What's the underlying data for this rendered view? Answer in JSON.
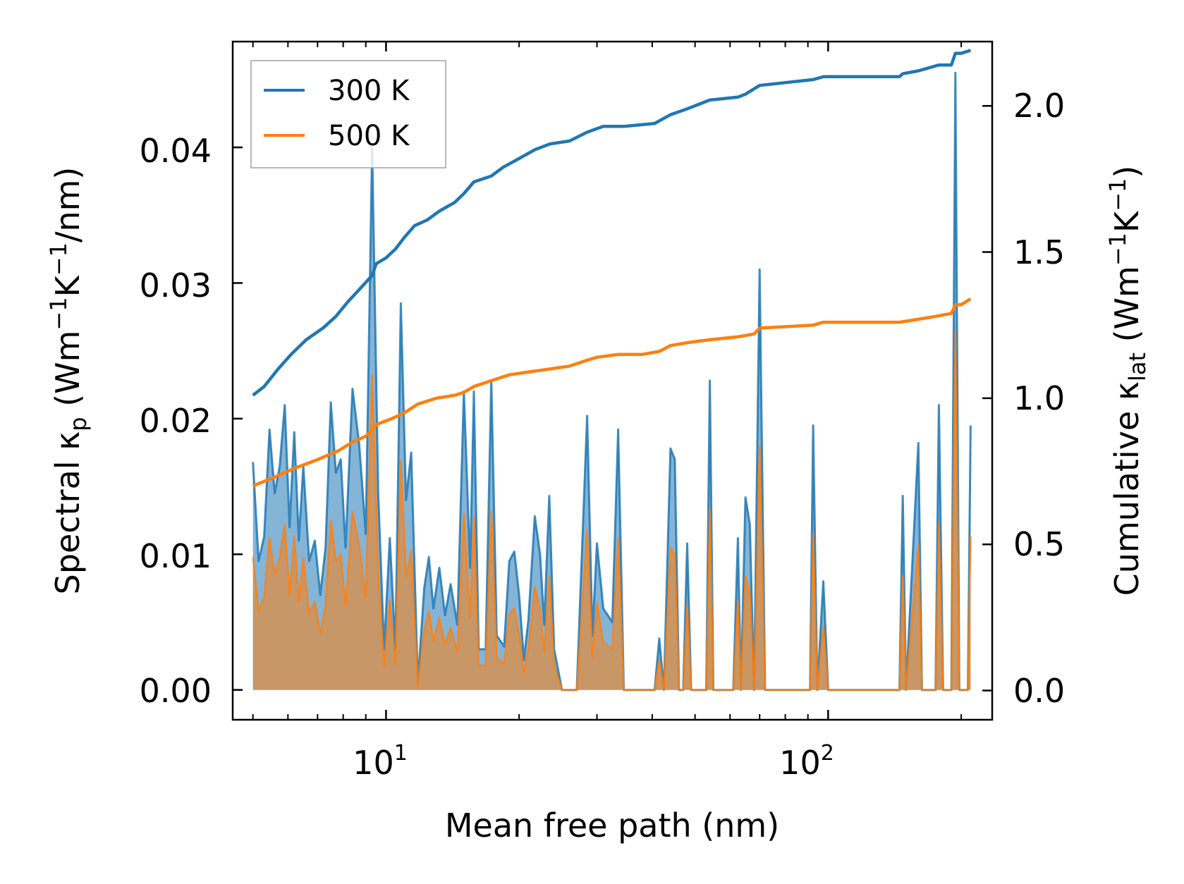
{
  "chart_data": {
    "type": "line",
    "xlabel": "Mean free path (nm)",
    "xscale": "log",
    "xlim": [
      4.5,
      235
    ],
    "x_ticks": [
      {
        "value": 10,
        "base": "10",
        "exp": "1"
      },
      {
        "value": 100,
        "base": "10",
        "exp": "2"
      }
    ],
    "y_left": {
      "label_pre": "Spectral κ",
      "label_sub": "p",
      "label_post": " (Wm",
      "label_sup1": "−1",
      "label_mid": "K",
      "label_sup2": "−1",
      "label_end": "/nm)",
      "lim": [
        -0.0022,
        0.0478
      ],
      "ticks": [
        0.0,
        0.01,
        0.02,
        0.03,
        0.04
      ],
      "tick_labels": [
        "0.00",
        "0.01",
        "0.02",
        "0.03",
        "0.04"
      ]
    },
    "y_right": {
      "label_pre": "Cumulative κ",
      "label_sub": "lat",
      "label_post": " (Wm",
      "label_sup1": "−1",
      "label_mid": "K",
      "label_sup2": "−1",
      "label_end": ")",
      "lim": [
        -0.1,
        2.22
      ],
      "ticks": [
        0.0,
        0.5,
        1.0,
        1.5,
        2.0
      ],
      "tick_labels": [
        "0.0",
        "0.5",
        "1.0",
        "1.5",
        "2.0"
      ]
    },
    "legend": {
      "position": "top-left",
      "entries": [
        "300 K",
        "500 K"
      ]
    },
    "series": [
      {
        "name": "300 K",
        "color": "#1f77b4",
        "fill_color": "#1f77b4",
        "spectral": [
          [
            5,
            0.0168
          ],
          [
            5.15,
            0.0095
          ],
          [
            5.3,
            0.0113
          ],
          [
            5.45,
            0.0192
          ],
          [
            5.6,
            0.0145
          ],
          [
            5.75,
            0.0165
          ],
          [
            5.9,
            0.021
          ],
          [
            6.05,
            0.012
          ],
          [
            6.2,
            0.019
          ],
          [
            6.35,
            0.011
          ],
          [
            6.5,
            0.0165
          ],
          [
            6.7,
            0.0095
          ],
          [
            6.9,
            0.011
          ],
          [
            7.1,
            0.007
          ],
          [
            7.3,
            0.0105
          ],
          [
            7.5,
            0.0212
          ],
          [
            7.7,
            0.016
          ],
          [
            7.9,
            0.017
          ],
          [
            8.1,
            0.0105
          ],
          [
            8.4,
            0.0222
          ],
          [
            8.7,
            0.018
          ],
          [
            9.0,
            0.0115
          ],
          [
            9.3,
            0.04
          ],
          [
            9.6,
            0.0145
          ],
          [
            9.9,
            0.003
          ],
          [
            10.2,
            0.0112
          ],
          [
            10.5,
            0.003
          ],
          [
            10.8,
            0.0285
          ],
          [
            11.1,
            0.014
          ],
          [
            11.4,
            0.0175
          ],
          [
            11.8,
            0.0005
          ],
          [
            12.2,
            0.0075
          ],
          [
            12.5,
            0.0098
          ],
          [
            12.8,
            0.006
          ],
          [
            13.2,
            0.009
          ],
          [
            13.6,
            0.0055
          ],
          [
            14.0,
            0.0078
          ],
          [
            14.5,
            0.0048
          ],
          [
            15.0,
            0.022
          ],
          [
            15.5,
            0.009
          ],
          [
            15.8,
            0.022
          ],
          [
            16.2,
            0.003
          ],
          [
            16.8,
            0.003
          ],
          [
            17.3,
            0.0228
          ],
          [
            17.8,
            0.004
          ],
          [
            18.5,
            0.0032
          ],
          [
            19.0,
            0.0095
          ],
          [
            19.5,
            0.0102
          ],
          [
            20.0,
            0.007
          ],
          [
            20.5,
            0.0022
          ],
          [
            21.0,
            0.0052
          ],
          [
            21.7,
            0.0128
          ],
          [
            22.3,
            0.01
          ],
          [
            22.8,
            0.0048
          ],
          [
            23.4,
            0.0143
          ],
          [
            24.0,
            0.003
          ],
          [
            25.0,
            0
          ],
          [
            27.0,
            0
          ],
          [
            28.5,
            0.0202
          ],
          [
            29.3,
            0.004
          ],
          [
            30.0,
            0.0108
          ],
          [
            31.0,
            0.006
          ],
          [
            32.5,
            0.005
          ],
          [
            33.5,
            0.0192
          ],
          [
            34.5,
            0
          ],
          [
            38.0,
            0
          ],
          [
            40.5,
            0
          ],
          [
            41.5,
            0.0038
          ],
          [
            42.5,
            0
          ],
          [
            44.0,
            0.0178
          ],
          [
            45.0,
            0.017
          ],
          [
            46.0,
            0
          ],
          [
            47.0,
            0
          ],
          [
            48.0,
            0.0108
          ],
          [
            49.0,
            0
          ],
          [
            53.0,
            0
          ],
          [
            54.0,
            0.0228
          ],
          [
            55.0,
            0
          ],
          [
            61.0,
            0
          ],
          [
            62.5,
            0.0112
          ],
          [
            63.5,
            0
          ],
          [
            65.0,
            0.0142
          ],
          [
            66.5,
            0.0122
          ],
          [
            68.0,
            0
          ],
          [
            70.0,
            0.031
          ],
          [
            72.0,
            0
          ],
          [
            91.0,
            0
          ],
          [
            92.5,
            0.0195
          ],
          [
            94.5,
            0
          ],
          [
            97.5,
            0.008
          ],
          [
            100.0,
            0
          ],
          [
            145.0,
            0
          ],
          [
            147.5,
            0.0143
          ],
          [
            150.0,
            0
          ],
          [
            160.0,
            0.0182
          ],
          [
            163.0,
            0
          ],
          [
            175.0,
            0
          ],
          [
            178.0,
            0.021
          ],
          [
            182.0,
            0
          ],
          [
            190.0,
            0
          ],
          [
            194.0,
            0.0455
          ],
          [
            198.0,
            0
          ],
          [
            207.0,
            0
          ],
          [
            210.0,
            0.0195
          ]
        ],
        "cumulative": [
          [
            5,
            1.01
          ],
          [
            5.3,
            1.04
          ],
          [
            5.7,
            1.1
          ],
          [
            6.1,
            1.15
          ],
          [
            6.6,
            1.2
          ],
          [
            7.2,
            1.24
          ],
          [
            7.7,
            1.28
          ],
          [
            8.2,
            1.33
          ],
          [
            8.8,
            1.38
          ],
          [
            9.3,
            1.42
          ],
          [
            9.5,
            1.46
          ],
          [
            10.0,
            1.48
          ],
          [
            10.5,
            1.51
          ],
          [
            11.0,
            1.55
          ],
          [
            11.6,
            1.59
          ],
          [
            12.4,
            1.61
          ],
          [
            13.2,
            1.64
          ],
          [
            14.3,
            1.67
          ],
          [
            15.0,
            1.7
          ],
          [
            15.8,
            1.74
          ],
          [
            17.3,
            1.76
          ],
          [
            18.4,
            1.79
          ],
          [
            20.0,
            1.82
          ],
          [
            21.7,
            1.85
          ],
          [
            23.5,
            1.87
          ],
          [
            26.0,
            1.88
          ],
          [
            28.5,
            1.91
          ],
          [
            31.0,
            1.93
          ],
          [
            34.5,
            1.93
          ],
          [
            40.5,
            1.94
          ],
          [
            44.0,
            1.97
          ],
          [
            48.0,
            1.99
          ],
          [
            54.0,
            2.02
          ],
          [
            62.5,
            2.03
          ],
          [
            65.0,
            2.04
          ],
          [
            70.0,
            2.07
          ],
          [
            92.5,
            2.09
          ],
          [
            97.5,
            2.1
          ],
          [
            145.0,
            2.1
          ],
          [
            147.5,
            2.11
          ],
          [
            160.0,
            2.12
          ],
          [
            178.0,
            2.14
          ],
          [
            190.0,
            2.14
          ],
          [
            194.0,
            2.18
          ],
          [
            200.0,
            2.18
          ],
          [
            210.0,
            2.19
          ]
        ]
      },
      {
        "name": "500 K",
        "color": "#ff7f0e",
        "fill_color": "#ff7f0e",
        "spectral": [
          [
            5,
            0.0098
          ],
          [
            5.15,
            0.0058
          ],
          [
            5.3,
            0.0068
          ],
          [
            5.45,
            0.0112
          ],
          [
            5.6,
            0.0085
          ],
          [
            5.75,
            0.0098
          ],
          [
            5.9,
            0.0122
          ],
          [
            6.05,
            0.007
          ],
          [
            6.2,
            0.0113
          ],
          [
            6.35,
            0.0065
          ],
          [
            6.5,
            0.0097
          ],
          [
            6.7,
            0.0056
          ],
          [
            6.9,
            0.0065
          ],
          [
            7.1,
            0.0042
          ],
          [
            7.3,
            0.0062
          ],
          [
            7.5,
            0.0125
          ],
          [
            7.7,
            0.0095
          ],
          [
            7.9,
            0.01
          ],
          [
            8.1,
            0.0062
          ],
          [
            8.4,
            0.0131
          ],
          [
            8.7,
            0.0106
          ],
          [
            9.0,
            0.0068
          ],
          [
            9.3,
            0.0232
          ],
          [
            9.6,
            0.0086
          ],
          [
            9.9,
            0.0018
          ],
          [
            10.2,
            0.0066
          ],
          [
            10.5,
            0.0018
          ],
          [
            10.8,
            0.0169
          ],
          [
            11.1,
            0.0083
          ],
          [
            11.4,
            0.0103
          ],
          [
            11.8,
            0.0003
          ],
          [
            12.2,
            0.0044
          ],
          [
            12.5,
            0.0058
          ],
          [
            12.8,
            0.0036
          ],
          [
            13.2,
            0.0053
          ],
          [
            13.6,
            0.0033
          ],
          [
            14.0,
            0.0046
          ],
          [
            14.5,
            0.0028
          ],
          [
            15.0,
            0.013
          ],
          [
            15.5,
            0.0053
          ],
          [
            15.8,
            0.0128
          ],
          [
            16.2,
            0.0018
          ],
          [
            16.8,
            0.0018
          ],
          [
            17.3,
            0.0132
          ],
          [
            17.8,
            0.0024
          ],
          [
            18.5,
            0.0019
          ],
          [
            19.0,
            0.0056
          ],
          [
            19.5,
            0.006
          ],
          [
            20.0,
            0.0041
          ],
          [
            20.5,
            0.0013
          ],
          [
            21.0,
            0.0031
          ],
          [
            21.7,
            0.0076
          ],
          [
            22.3,
            0.0059
          ],
          [
            22.8,
            0.0028
          ],
          [
            23.4,
            0.0084
          ],
          [
            24.0,
            0.0018
          ],
          [
            25.0,
            0
          ],
          [
            27.0,
            0
          ],
          [
            28.5,
            0.0118
          ],
          [
            29.3,
            0.0024
          ],
          [
            30.0,
            0.0064
          ],
          [
            31.0,
            0.0035
          ],
          [
            32.5,
            0.003
          ],
          [
            33.5,
            0.0112
          ],
          [
            34.5,
            0
          ],
          [
            38.0,
            0
          ],
          [
            40.5,
            0
          ],
          [
            41.5,
            0.0022
          ],
          [
            42.5,
            0
          ],
          [
            44.0,
            0.0105
          ],
          [
            45.0,
            0.01
          ],
          [
            46.0,
            0
          ],
          [
            47.0,
            0
          ],
          [
            48.0,
            0.0063
          ],
          [
            49.0,
            0
          ],
          [
            53.0,
            0
          ],
          [
            54.0,
            0.0134
          ],
          [
            55.0,
            0
          ],
          [
            61.0,
            0
          ],
          [
            62.5,
            0.0066
          ],
          [
            63.5,
            0
          ],
          [
            65.0,
            0.0084
          ],
          [
            66.5,
            0.0072
          ],
          [
            68.0,
            0
          ],
          [
            70.0,
            0.018
          ],
          [
            72.0,
            0
          ],
          [
            91.0,
            0
          ],
          [
            92.5,
            0.0115
          ],
          [
            94.5,
            0
          ],
          [
            97.5,
            0.0047
          ],
          [
            100.0,
            0
          ],
          [
            145.0,
            0
          ],
          [
            147.5,
            0.0084
          ],
          [
            150.0,
            0
          ],
          [
            160.0,
            0.0107
          ],
          [
            163.0,
            0
          ],
          [
            175.0,
            0
          ],
          [
            178.0,
            0.0123
          ],
          [
            182.0,
            0
          ],
          [
            190.0,
            0
          ],
          [
            194.0,
            0.0265
          ],
          [
            198.0,
            0
          ],
          [
            207.0,
            0
          ],
          [
            210.0,
            0.0113
          ]
        ],
        "cumulative": [
          [
            5,
            0.7
          ],
          [
            5.6,
            0.73
          ],
          [
            6.2,
            0.76
          ],
          [
            7.0,
            0.79
          ],
          [
            7.8,
            0.82
          ],
          [
            8.4,
            0.85
          ],
          [
            9.0,
            0.87
          ],
          [
            9.3,
            0.89
          ],
          [
            9.5,
            0.91
          ],
          [
            10.3,
            0.93
          ],
          [
            11.0,
            0.95
          ],
          [
            11.8,
            0.98
          ],
          [
            13.0,
            1.0
          ],
          [
            14.3,
            1.01
          ],
          [
            15.0,
            1.02
          ],
          [
            15.8,
            1.04
          ],
          [
            17.3,
            1.06
          ],
          [
            19.0,
            1.08
          ],
          [
            21.0,
            1.09
          ],
          [
            23.5,
            1.1
          ],
          [
            26.0,
            1.11
          ],
          [
            28.5,
            1.13
          ],
          [
            30.0,
            1.14
          ],
          [
            33.5,
            1.15
          ],
          [
            38.0,
            1.15
          ],
          [
            41.5,
            1.16
          ],
          [
            44.0,
            1.18
          ],
          [
            48.0,
            1.19
          ],
          [
            54.0,
            1.2
          ],
          [
            62.5,
            1.21
          ],
          [
            68.0,
            1.22
          ],
          [
            70.0,
            1.24
          ],
          [
            92.5,
            1.25
          ],
          [
            97.5,
            1.26
          ],
          [
            145.0,
            1.26
          ],
          [
            160.0,
            1.27
          ],
          [
            175.0,
            1.28
          ],
          [
            190.0,
            1.29
          ],
          [
            194.0,
            1.32
          ],
          [
            200.0,
            1.32
          ],
          [
            210.0,
            1.34
          ]
        ]
      }
    ]
  }
}
